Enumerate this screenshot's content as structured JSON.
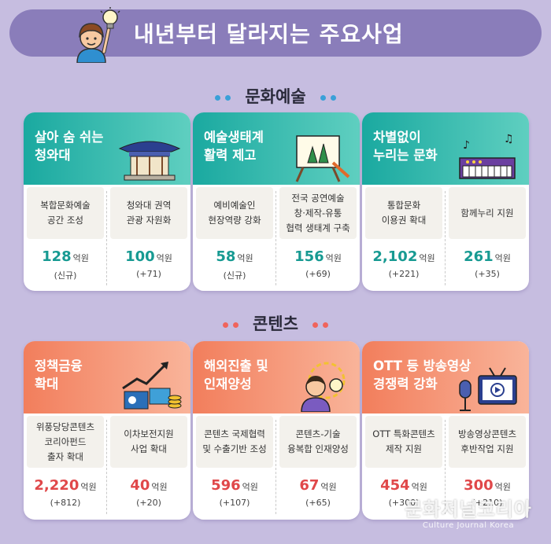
{
  "header": {
    "title": "내년부터 달라지는 주요사업"
  },
  "sections": [
    {
      "title": "문화예술",
      "cards": [
        {
          "title": "살아 숨 쉬는\n청와대",
          "icon": "blue-house-icon",
          "items": [
            {
              "label": "복합문화예술\n공간 조성",
              "amount": "128",
              "unit": "억원",
              "change": "(신규)"
            },
            {
              "label": "청와대 권역\n관광 자원화",
              "amount": "100",
              "unit": "억원",
              "change": "(+71)"
            }
          ]
        },
        {
          "title": "예술생태계\n활력 제고",
          "icon": "easel-icon",
          "items": [
            {
              "label": "예비예술인\n현장역량 강화",
              "amount": "58",
              "unit": "억원",
              "change": "(신규)"
            },
            {
              "label": "전국 공연예술\n창·제작-유통\n협력 생태계 구축",
              "amount": "156",
              "unit": "억원",
              "change": "(+69)"
            }
          ]
        },
        {
          "title": "차별없이\n누리는 문화",
          "icon": "keyboard-icon",
          "items": [
            {
              "label": "통합문화\n이용권 확대",
              "amount": "2,102",
              "unit": "억원",
              "change": "(+221)"
            },
            {
              "label": "함께누리 지원",
              "amount": "261",
              "unit": "억원",
              "change": "(+35)"
            }
          ]
        }
      ]
    },
    {
      "title": "콘텐츠",
      "cards": [
        {
          "title": "정책금융\n확대",
          "icon": "growth-chart-icon",
          "items": [
            {
              "label": "위풍당당콘텐츠\n코리아펀드\n출자 확대",
              "amount": "2,220",
              "unit": "억원",
              "change": "(+812)"
            },
            {
              "label": "이차보전지원\n사업 확대",
              "amount": "40",
              "unit": "억원",
              "change": "(+20)"
            }
          ]
        },
        {
          "title": "해외진출 및\n인재양성",
          "icon": "idea-person-icon",
          "items": [
            {
              "label": "콘텐츠 국제협력\n및 수출기반 조성",
              "amount": "596",
              "unit": "억원",
              "change": "(+107)"
            },
            {
              "label": "콘텐츠-기술\n융복합 인재양성",
              "amount": "67",
              "unit": "억원",
              "change": "(+65)"
            }
          ]
        },
        {
          "title": "OTT 등 방송영상\n경쟁력 강화",
          "icon": "tv-microphone-icon",
          "items": [
            {
              "label": "OTT 특화콘텐츠\n제작 지원",
              "amount": "454",
              "unit": "억원",
              "change": "(+300)"
            },
            {
              "label": "방송영상콘텐츠\n후반작업 지원",
              "amount": "300",
              "unit": "억원",
              "change": "(+210)"
            }
          ]
        }
      ]
    }
  ],
  "watermark": {
    "main": "문화저널코리아",
    "sub": "Culture Journal Korea"
  },
  "colors": {
    "background": "#c6bde0",
    "header": "#8a7dba",
    "teal": "#179a92",
    "red": "#e0484a"
  }
}
